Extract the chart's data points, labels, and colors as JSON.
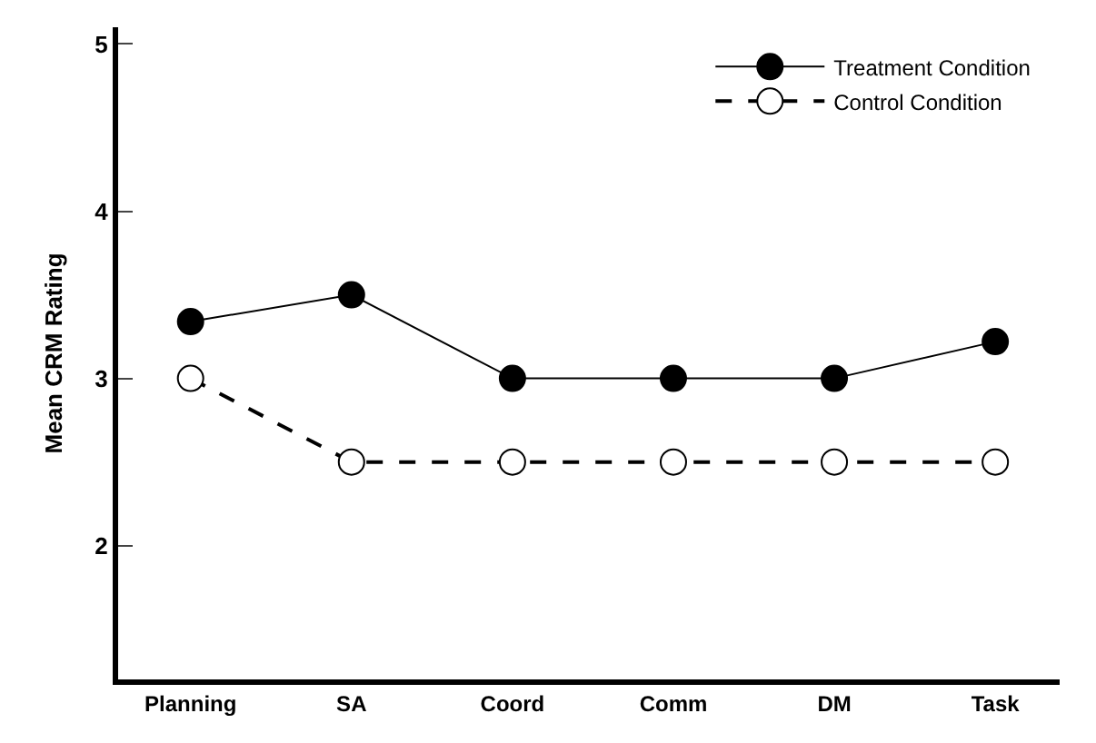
{
  "chart_data": {
    "type": "line",
    "ylabel": "Mean CRM Rating",
    "categories": [
      "Planning",
      "SA",
      "Coord",
      "Comm",
      "DM",
      "Task"
    ],
    "series": [
      {
        "name": "Treatment Condition",
        "color": "#000000",
        "values": [
          3.34,
          3.5,
          3.0,
          3.0,
          3.0,
          3.22
        ],
        "marker": "circle",
        "line_style": "solid"
      },
      {
        "name": "Control Condition",
        "color": "#000000",
        "values": [
          3.0,
          2.5,
          2.5,
          2.5,
          2.5,
          2.5
        ],
        "marker": "circle",
        "line_style": "dashed"
      }
    ],
    "ylim": [
      1.2,
      5.1
    ],
    "yticks": [
      2,
      3,
      4,
      5
    ],
    "legend": "top right"
  }
}
